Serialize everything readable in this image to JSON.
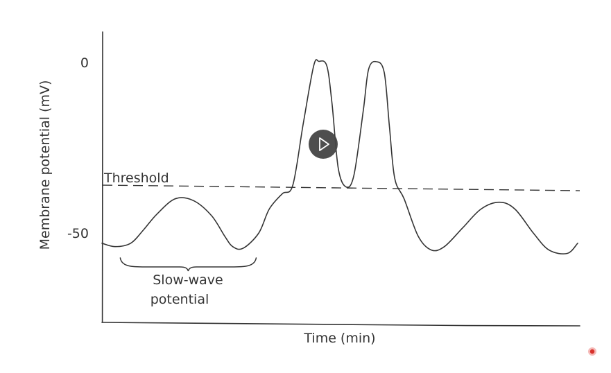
{
  "chart_data": {
    "type": "line",
    "style": "hand-drawn sketch",
    "xlabel": "Time (min)",
    "ylabel": "Membrane potential (mV)",
    "y_ticks": [
      {
        "value": 0,
        "label": "0"
      },
      {
        "value": -50,
        "label": "-50"
      }
    ],
    "ylim": [
      -76,
      9
    ],
    "x_tick_labels": "none",
    "grid": false,
    "series": [
      {
        "values": [
          [
            0,
            -53
          ],
          [
            0.25,
            -54
          ],
          [
            0.55,
            -53
          ],
          [
            0.8,
            -49
          ],
          [
            1.05,
            -44.5
          ],
          [
            1.4,
            -40
          ],
          [
            1.75,
            -40.5
          ],
          [
            2.1,
            -45
          ],
          [
            2.35,
            -51
          ],
          [
            2.5,
            -54
          ],
          [
            2.7,
            -54.5
          ],
          [
            3.0,
            -50
          ],
          [
            3.2,
            -43
          ],
          [
            3.45,
            -38.5
          ],
          [
            3.65,
            -36
          ],
          [
            3.85,
            -18
          ],
          [
            4.05,
            -1
          ],
          [
            4.15,
            0.3
          ],
          [
            4.3,
            -1
          ],
          [
            4.4,
            -12
          ],
          [
            4.52,
            -31
          ],
          [
            4.67,
            -36.5
          ],
          [
            4.82,
            -33
          ],
          [
            5.0,
            -14
          ],
          [
            5.1,
            -2
          ],
          [
            5.25,
            0.2
          ],
          [
            5.4,
            -3
          ],
          [
            5.5,
            -19
          ],
          [
            5.6,
            -34
          ],
          [
            5.78,
            -40
          ],
          [
            6.05,
            -51
          ],
          [
            6.3,
            -55
          ],
          [
            6.55,
            -54
          ],
          [
            6.9,
            -48.5
          ],
          [
            7.25,
            -43
          ],
          [
            7.6,
            -41
          ],
          [
            7.9,
            -43
          ],
          [
            8.25,
            -50
          ],
          [
            8.55,
            -55
          ],
          [
            8.9,
            -56
          ],
          [
            9.1,
            -53
          ]
        ]
      }
    ],
    "threshold": {
      "label": "Threshold",
      "value": -37,
      "style": "dashed"
    },
    "annotation": {
      "text_lines": [
        "Slow-wave",
        "potential"
      ],
      "x_from": 0.35,
      "x_to": 2.95,
      "style": "curly brace"
    },
    "line_color": "#333333"
  },
  "overlay": {
    "play_button_icon": "play-icon",
    "recording_indicator_icon": "record-dot-icon",
    "colors": {
      "play_bg": "#444444",
      "record": "#d8322c"
    }
  }
}
